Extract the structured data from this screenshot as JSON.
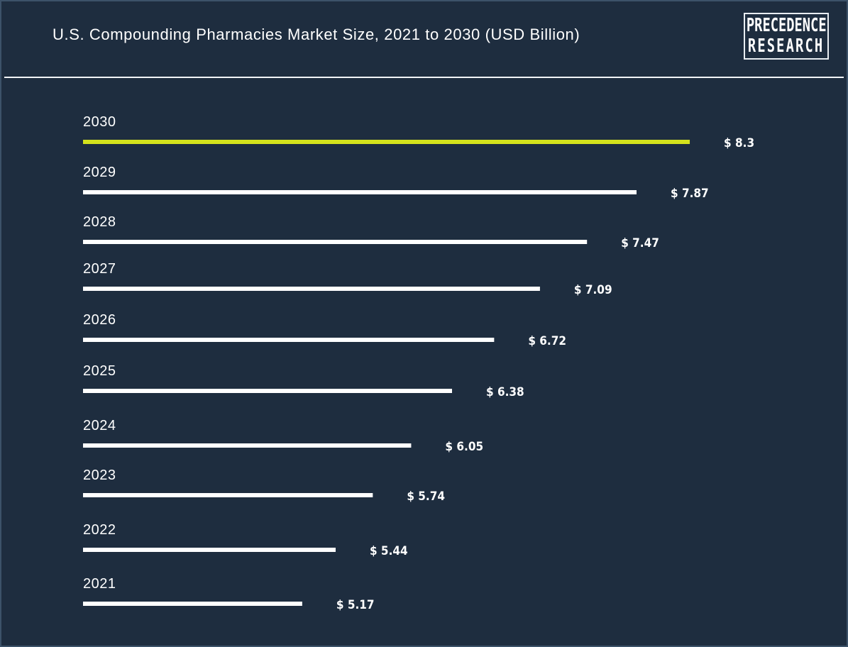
{
  "title": "U.S. Compounding Pharmacies Market Size, 2021 to 2030 (USD Billion)",
  "logo": {
    "line1": "PRECEDENCE",
    "line2": "RESEARCH"
  },
  "colors": {
    "background": "#1e2d3f",
    "bar": "#ffffff",
    "highlight": "#d4e21c",
    "text": "#ffffff"
  },
  "chart_data": {
    "type": "bar",
    "orientation": "horizontal",
    "categories": [
      "2030",
      "2029",
      "2028",
      "2027",
      "2026",
      "2025",
      "2024",
      "2023",
      "2022",
      "2021"
    ],
    "values": [
      8.3,
      7.87,
      7.47,
      7.09,
      6.72,
      6.38,
      6.05,
      5.74,
      5.44,
      5.17
    ],
    "value_labels": [
      "$ 8.3",
      "$ 7.87",
      "$ 7.47",
      "$ 7.09",
      "$ 6.72",
      "$ 6.38",
      "$ 6.05",
      "$ 5.74",
      "$ 5.44",
      "$ 5.17"
    ],
    "highlight_category": "2030",
    "title": "U.S. Compounding Pharmacies Market Size, 2021 to 2030 (USD Billion)",
    "xlabel": "",
    "ylabel": "",
    "grid": false,
    "legend": "none"
  }
}
